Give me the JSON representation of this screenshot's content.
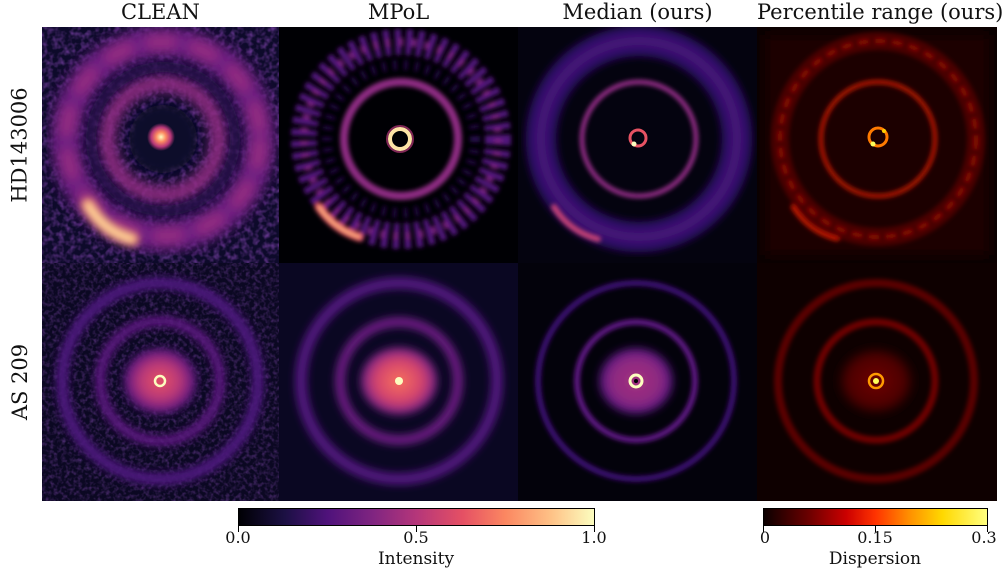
{
  "columns": [
    "CLEAN",
    "MPoL",
    "Median (ours)",
    "Percentile range (ours)"
  ],
  "rows": [
    "HD143006",
    "AS 209"
  ],
  "colorbars": {
    "intensity": {
      "label": "Intensity",
      "colormap": "magma",
      "ticks": [
        "0.0",
        "0.5",
        "1.0"
      ],
      "tick_values": [
        0.0,
        0.5,
        1.0
      ],
      "range": [
        0.0,
        1.0
      ]
    },
    "dispersion": {
      "label": "Dispersion",
      "colormap": "hot",
      "ticks": [
        "0",
        "0.15",
        "0.3"
      ],
      "tick_values": [
        0,
        0.15,
        0.3
      ],
      "range": [
        0,
        0.3
      ]
    }
  },
  "colors": {
    "background_dark": "#000004",
    "magma_low": "#3b0f70",
    "magma_mid": "#b73779",
    "magma_high": "#fcfdbf",
    "hot_low": "#3a0000",
    "hot_mid": "#e13800",
    "hot_high": "#ffff5a"
  }
}
